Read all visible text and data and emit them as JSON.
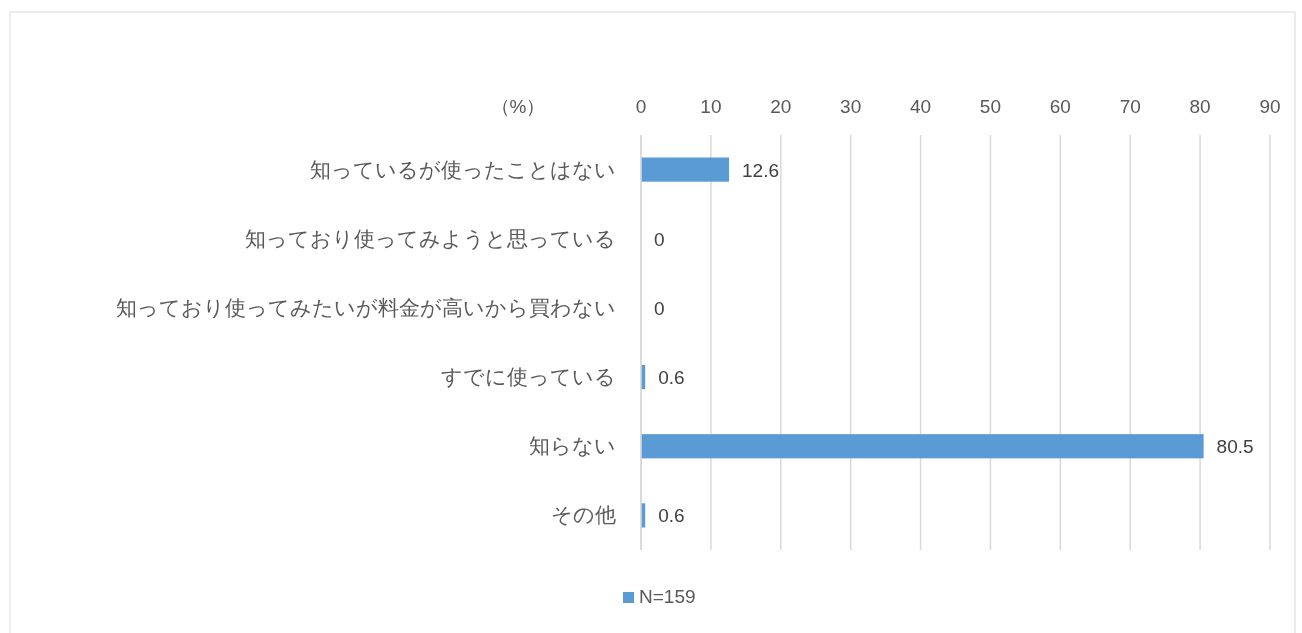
{
  "chart_data": {
    "type": "bar",
    "orientation": "horizontal",
    "xlabel": "（%）",
    "categories": [
      "知っているが使ったことはない",
      "知っており使ってみようと思っている",
      "知っており使ってみたいが料金が高いから買わない",
      "すでに使っている",
      "知らない",
      "その他"
    ],
    "series": [
      {
        "name": "N=159",
        "color": "#5b9bd5",
        "values": [
          12.6,
          0,
          0,
          0.6,
          80.5,
          0.6
        ]
      }
    ],
    "xlim": [
      0,
      90
    ],
    "xticks": [
      0,
      10,
      20,
      30,
      40,
      50,
      60,
      70,
      80,
      90
    ],
    "grid": "x",
    "legend": "bottom",
    "data_labels": true
  }
}
